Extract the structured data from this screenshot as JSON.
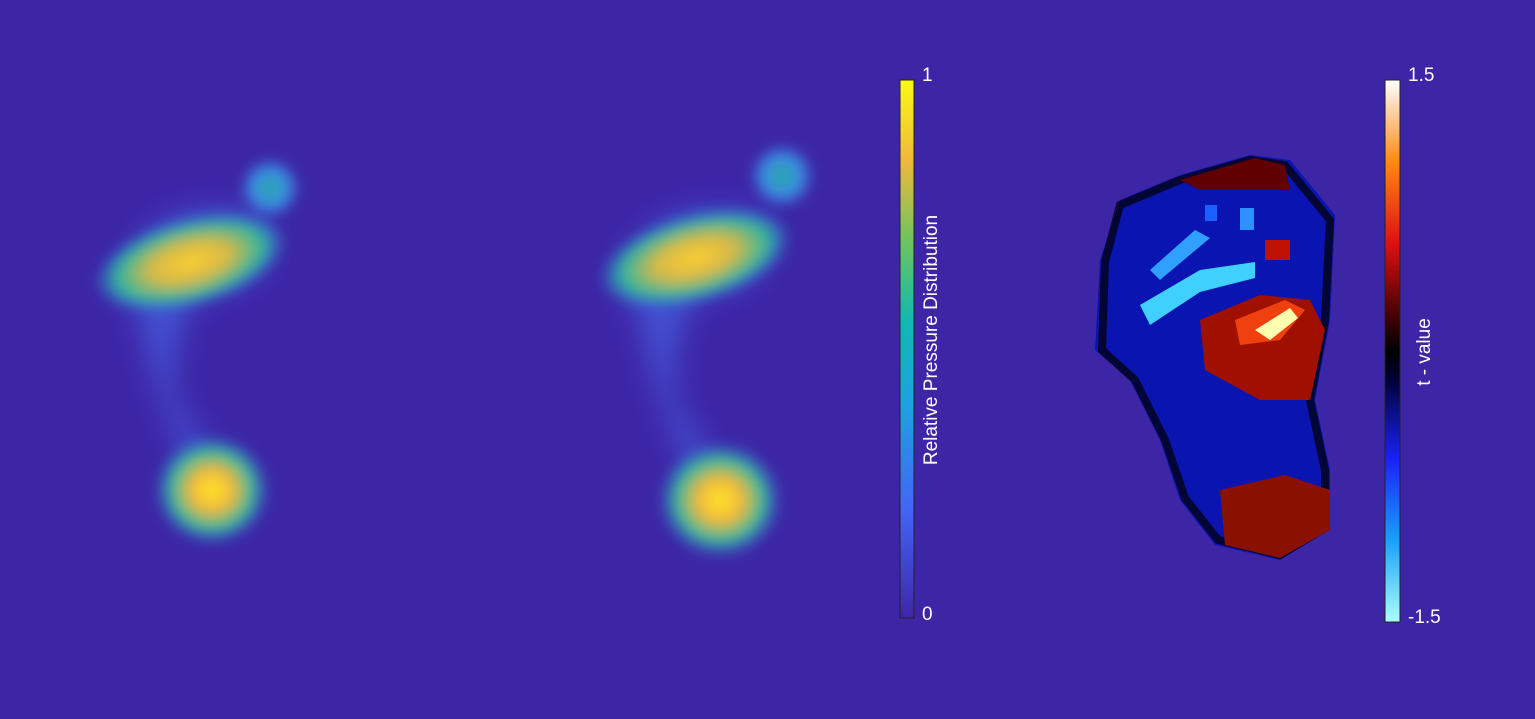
{
  "colorbar_pressure": {
    "label": "Relative Pressure Distribution",
    "max_label": "1",
    "min_label": "0"
  },
  "colorbar_t": {
    "label": "t - value",
    "max_label": "1.5",
    "min_label": "-1.5"
  }
}
